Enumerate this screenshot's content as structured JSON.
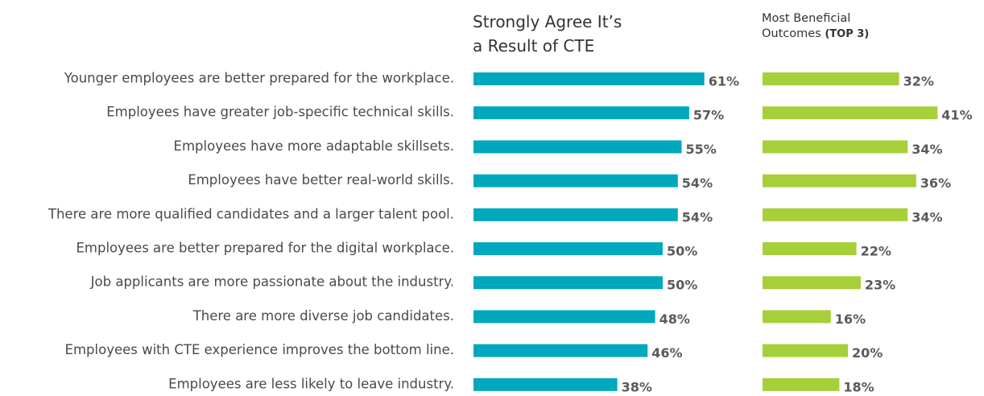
{
  "chart_data": {
    "type": "bar",
    "orientation": "horizontal",
    "categories": [
      "Younger employees are better prepared for the workplace.",
      "Employees have greater job-specific technical skills.",
      "Employees have more adaptable skillsets.",
      "Employees have better real-world skills.",
      "There are more qualified candidates and a larger talent pool.",
      "Employees are better prepared for the digital workplace.",
      "Job applicants are more passionate about the industry.",
      "There are more diverse job candidates.",
      "Employees with CTE experience improves the bottom line.",
      "Employees are less likely to leave industry."
    ],
    "series": [
      {
        "name": "Strongly Agree It’s a Result of CTE",
        "color": "#00a8bd",
        "values": [
          61,
          57,
          55,
          54,
          54,
          50,
          50,
          48,
          46,
          38
        ],
        "value_labels": [
          "61%",
          "57%",
          "55%",
          "54%",
          "54%",
          "50%",
          "50%",
          "48%",
          "46%",
          "38%"
        ]
      },
      {
        "name": "Most Beneficial Outcomes",
        "name_note": "(TOP 3)",
        "color": "#a7cf3a",
        "values": [
          32,
          41,
          34,
          36,
          34,
          22,
          23,
          16,
          20,
          18
        ],
        "value_labels": [
          "32%",
          "41%",
          "34%",
          "36%",
          "34%",
          "22%",
          "23%",
          "16%",
          "20%",
          "18%"
        ]
      }
    ]
  }
}
